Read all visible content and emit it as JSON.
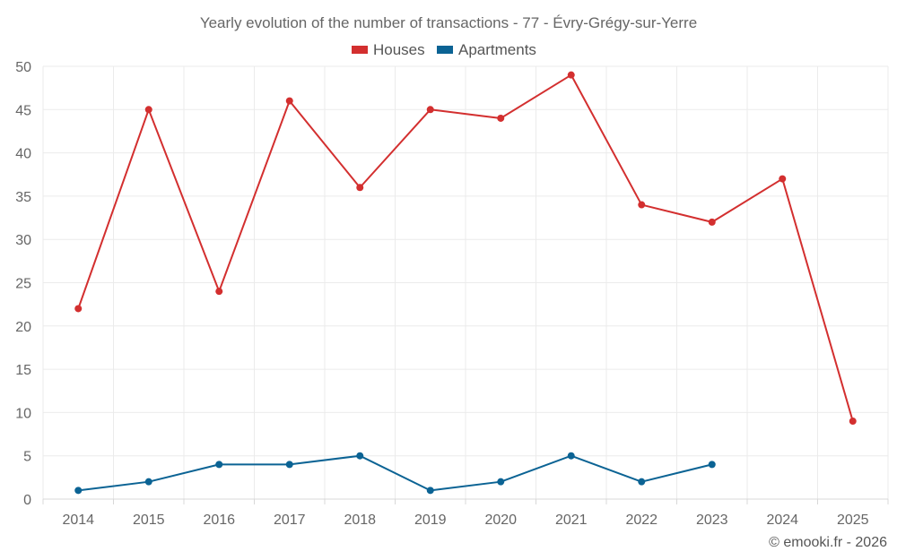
{
  "chart_data": {
    "type": "line",
    "title": "Yearly evolution of the number of transactions - 77 - Évry-Grégy-sur-Yerre",
    "categories": [
      "2014",
      "2015",
      "2016",
      "2017",
      "2018",
      "2019",
      "2020",
      "2021",
      "2022",
      "2023",
      "2024",
      "2025"
    ],
    "series": [
      {
        "name": "Houses",
        "color": "#d32f2f",
        "values": [
          22,
          45,
          24,
          46,
          36,
          45,
          44,
          49,
          34,
          32,
          37,
          9
        ]
      },
      {
        "name": "Apartments",
        "color": "#0b6394",
        "values": [
          1,
          2,
          4,
          4,
          5,
          1,
          2,
          5,
          2,
          4,
          null,
          null
        ]
      }
    ],
    "xlabel": "",
    "ylabel": "",
    "ylim": [
      0,
      50
    ],
    "yticks": [
      0,
      5,
      10,
      15,
      20,
      25,
      30,
      35,
      40,
      45,
      50
    ],
    "grid": true,
    "legend_position": "top-center"
  },
  "credit": "© emooki.fr - 2026"
}
